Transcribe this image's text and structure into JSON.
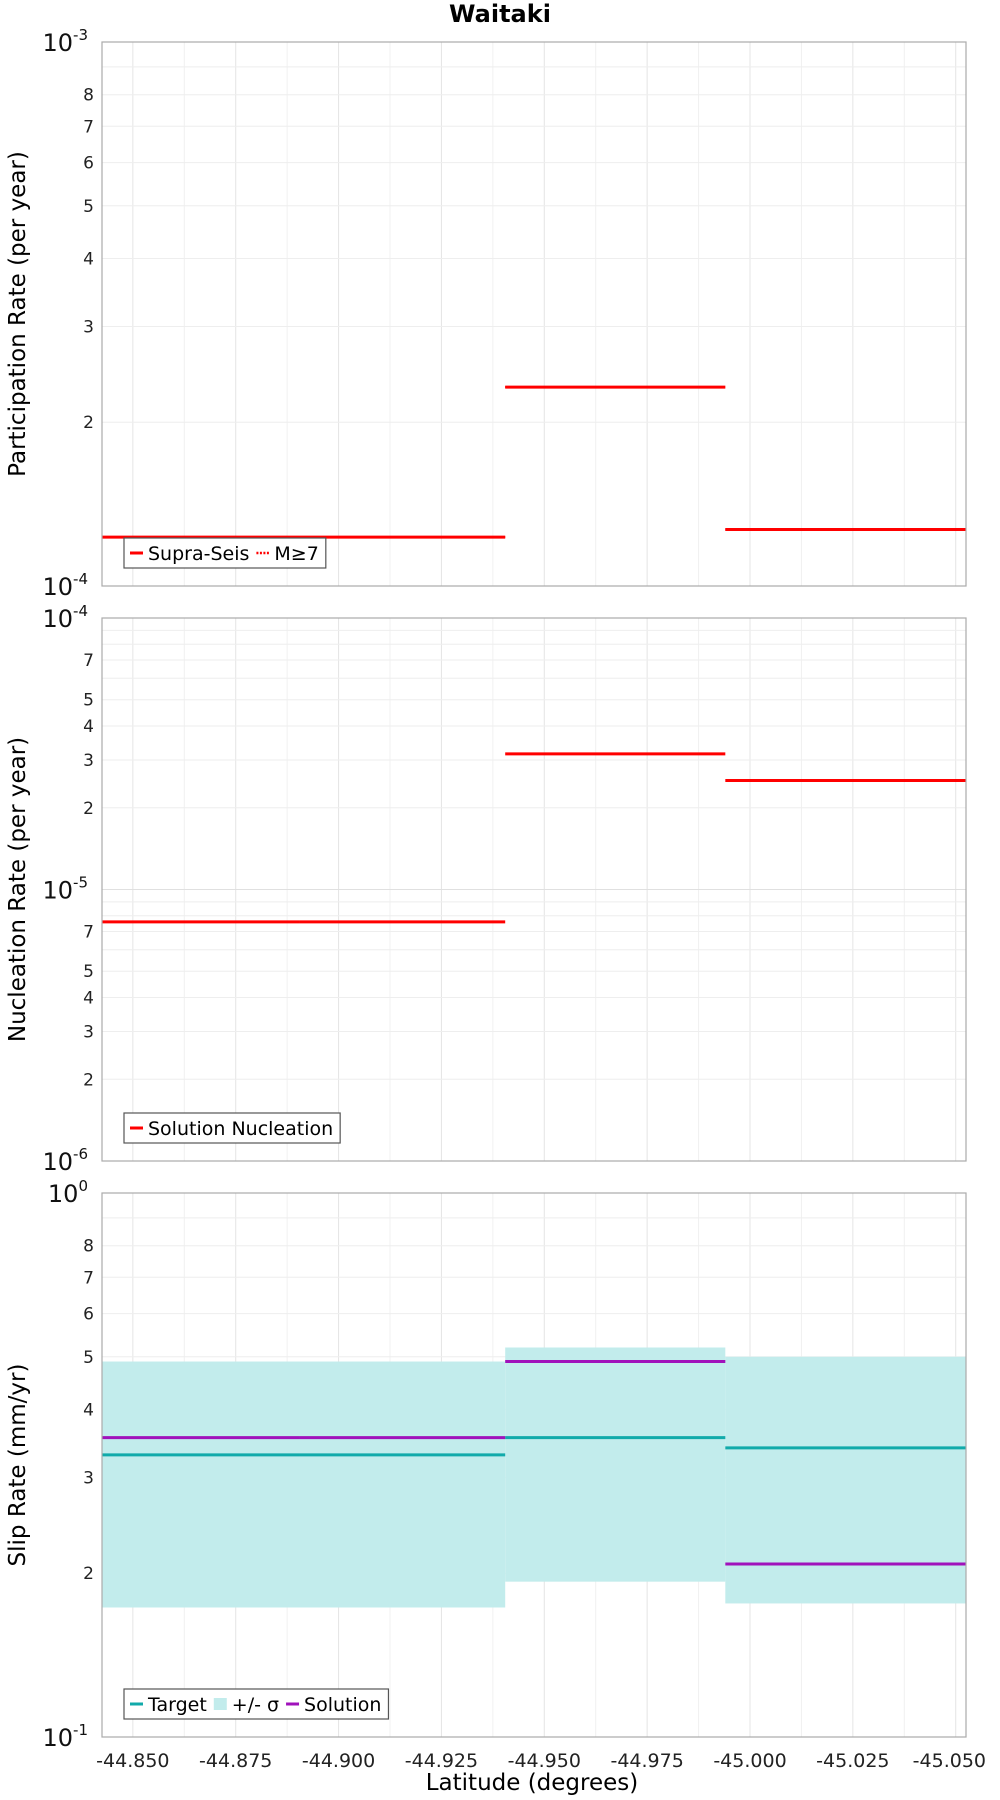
{
  "title": "Waitaki",
  "xlabel": "Latitude (degrees)",
  "x_ticks": [
    "-44.850",
    "-44.875",
    "-44.900",
    "-44.925",
    "-44.950",
    "-44.975",
    "-45.000",
    "-45.025",
    "-45.050"
  ],
  "colors": {
    "supra": "#ff0000",
    "m7": "#ff0000",
    "nucleation": "#ff0000",
    "target": "#11aaaa",
    "sigma": "#c2ecec",
    "solution": "#a012bb"
  },
  "chart_data": [
    {
      "type": "line",
      "name": "participation",
      "ylabel": "Participation Rate (per year)",
      "yscale": "log",
      "ylim": [
        0.0001,
        0.001
      ],
      "xlim": [
        -44.8425,
        -45.0525
      ],
      "major_ticks": [
        {
          "value": 0.001,
          "base": "10",
          "exp": "-3"
        },
        {
          "value": 0.0001,
          "base": "10",
          "exp": "-4"
        }
      ],
      "minor_ticks": [
        {
          "value": 0.0002,
          "label": "2"
        },
        {
          "value": 0.0003,
          "label": "3"
        },
        {
          "value": 0.0004,
          "label": "4"
        },
        {
          "value": 0.0005,
          "label": "5"
        },
        {
          "value": 0.0006,
          "label": "6"
        },
        {
          "value": 0.0007,
          "label": "7"
        },
        {
          "value": 0.0008,
          "label": "8"
        }
      ],
      "legend": [
        {
          "label": "Supra-Seis",
          "style": "solid",
          "color": "#ff0000"
        },
        {
          "label": "M≥7",
          "style": "dotted",
          "color": "#ff0000"
        }
      ],
      "series": [
        {
          "name": "Supra-Seis",
          "style": "solid",
          "color": "#ff0000",
          "segments": [
            {
              "x0": -44.8425,
              "x1": -44.8905,
              "y": 0.000123
            },
            {
              "x0": -44.8905,
              "x1": -44.9405,
              "y": 0.000123
            },
            {
              "x0": -44.9405,
              "x1": -44.994,
              "y": 0.000232
            },
            {
              "x0": -44.994,
              "x1": -45.0525,
              "y": 0.000127
            }
          ]
        },
        {
          "name": "M≥7",
          "style": "dotted",
          "color": "#ff0000",
          "segments": [
            {
              "x0": -44.8425,
              "x1": -44.8905,
              "y": 0.000123
            },
            {
              "x0": -44.8905,
              "x1": -44.9405,
              "y": 0.000123
            },
            {
              "x0": -44.9405,
              "x1": -44.994,
              "y": 0.000232
            },
            {
              "x0": -44.994,
              "x1": -45.0525,
              "y": 0.000127
            }
          ]
        }
      ]
    },
    {
      "type": "line",
      "name": "nucleation",
      "ylabel": "Nucleation Rate (per year)",
      "yscale": "log",
      "ylim": [
        1e-06,
        0.0001
      ],
      "xlim": [
        -44.8425,
        -45.0525
      ],
      "major_ticks": [
        {
          "value": 0.0001,
          "base": "10",
          "exp": "-4"
        },
        {
          "value": 1e-05,
          "base": "10",
          "exp": "-5"
        },
        {
          "value": 1e-06,
          "base": "10",
          "exp": "-6"
        }
      ],
      "minor_ticks": [
        {
          "value": 7e-05,
          "label": "7"
        },
        {
          "value": 5e-05,
          "label": "5"
        },
        {
          "value": 4e-05,
          "label": "4"
        },
        {
          "value": 3e-05,
          "label": "3"
        },
        {
          "value": 2e-05,
          "label": "2"
        },
        {
          "value": 7e-06,
          "label": "7"
        },
        {
          "value": 5e-06,
          "label": "5"
        },
        {
          "value": 4e-06,
          "label": "4"
        },
        {
          "value": 3e-06,
          "label": "3"
        },
        {
          "value": 2e-06,
          "label": "2"
        }
      ],
      "legend": [
        {
          "label": "Solution Nucleation",
          "style": "solid",
          "color": "#ff0000"
        }
      ],
      "series": [
        {
          "name": "Solution Nucleation",
          "style": "solid",
          "color": "#ff0000",
          "segments": [
            {
              "x0": -44.8425,
              "x1": -44.8905,
              "y": 7.6e-06
            },
            {
              "x0": -44.8905,
              "x1": -44.9405,
              "y": 7.6e-06
            },
            {
              "x0": -44.9405,
              "x1": -44.994,
              "y": 3.16e-05
            },
            {
              "x0": -44.994,
              "x1": -45.0525,
              "y": 2.52e-05
            }
          ]
        }
      ]
    },
    {
      "type": "line",
      "name": "slip",
      "ylabel": "Slip Rate (mm/yr)",
      "yscale": "log",
      "ylim": [
        0.1,
        1
      ],
      "xlim": [
        -44.8425,
        -45.0525
      ],
      "major_ticks": [
        {
          "value": 1,
          "base": "10",
          "exp": "0"
        },
        {
          "value": 0.1,
          "base": "10",
          "exp": "-1"
        }
      ],
      "minor_ticks": [
        {
          "value": 0.2,
          "label": "2"
        },
        {
          "value": 0.3,
          "label": "3"
        },
        {
          "value": 0.4,
          "label": "4"
        },
        {
          "value": 0.5,
          "label": "5"
        },
        {
          "value": 0.6,
          "label": "6"
        },
        {
          "value": 0.7,
          "label": "7"
        },
        {
          "value": 0.8,
          "label": "8"
        }
      ],
      "legend": [
        {
          "label": "Target",
          "style": "solid",
          "color": "#11aaaa"
        },
        {
          "label": "+/- σ",
          "style": "band",
          "color": "#c2ecec"
        },
        {
          "label": "Solution",
          "style": "solid",
          "color": "#a012bb"
        }
      ],
      "bands": [
        {
          "x0": -44.8425,
          "x1": -44.9405,
          "low": 0.173,
          "high": 0.49
        },
        {
          "x0": -44.9405,
          "x1": -44.994,
          "low": 0.193,
          "high": 0.52
        },
        {
          "x0": -44.994,
          "x1": -45.0525,
          "low": 0.176,
          "high": 0.5
        }
      ],
      "series": [
        {
          "name": "Target",
          "style": "solid",
          "color": "#11aaaa",
          "segments": [
            {
              "x0": -44.8425,
              "x1": -44.8905,
              "y": 0.33
            },
            {
              "x0": -44.8905,
              "x1": -44.9405,
              "y": 0.33
            },
            {
              "x0": -44.9405,
              "x1": -44.994,
              "y": 0.355
            },
            {
              "x0": -44.994,
              "x1": -45.0525,
              "y": 0.34
            }
          ]
        },
        {
          "name": "Solution",
          "style": "solid",
          "color": "#a012bb",
          "segments": [
            {
              "x0": -44.8425,
              "x1": -44.8905,
              "y": 0.355
            },
            {
              "x0": -44.8905,
              "x1": -44.9405,
              "y": 0.355
            },
            {
              "x0": -44.9405,
              "x1": -44.994,
              "y": 0.49
            },
            {
              "x0": -44.994,
              "x1": -45.0525,
              "y": 0.208
            }
          ]
        }
      ]
    }
  ]
}
